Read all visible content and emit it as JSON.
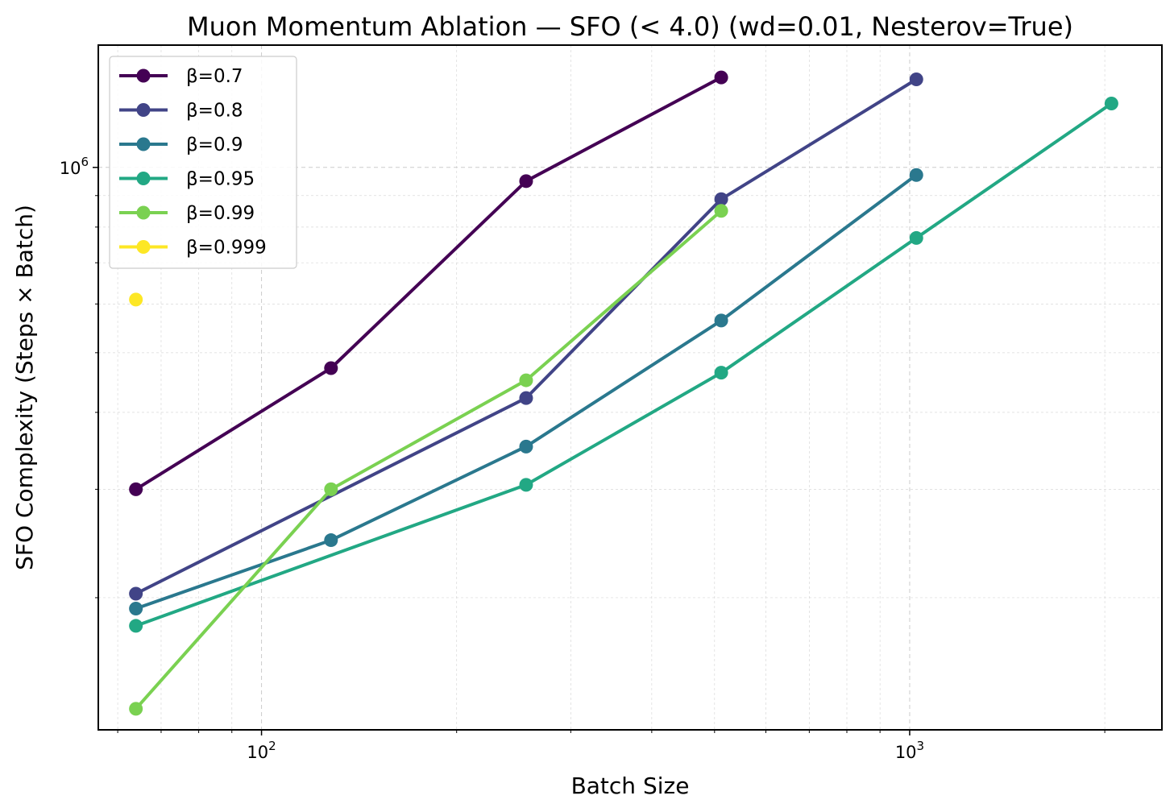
{
  "chart_data": {
    "type": "line",
    "title": "Muon Momentum Ablation — SFO (< 4.0)  (wd=0.01, Nesterov=True)",
    "xlabel": "Batch Size",
    "ylabel": "SFO Complexity (Steps × Batch)",
    "xscale": "log",
    "yscale": "log",
    "xlim": [
      56,
      2450
    ],
    "ylim": [
      122000,
      1580000
    ],
    "xticks": [
      {
        "value": 100,
        "base": "10",
        "exp": "2"
      },
      {
        "value": 1000,
        "base": "10",
        "exp": "3"
      }
    ],
    "yticks": [
      {
        "value": 1000000,
        "base": "10",
        "exp": "6"
      }
    ],
    "grid": true,
    "legend_position": "upper-left",
    "series": [
      {
        "name": "β=0.7",
        "color": "#440154",
        "x": [
          64,
          128,
          256,
          512
        ],
        "y": [
          300000,
          472000,
          950000,
          1400000
        ]
      },
      {
        "name": "β=0.8",
        "color": "#414487",
        "x": [
          64,
          256,
          512,
          1024
        ],
        "y": [
          203000,
          422000,
          888000,
          1390000
        ]
      },
      {
        "name": "β=0.9",
        "color": "#2a788e",
        "x": [
          64,
          128,
          256,
          512,
          1024
        ],
        "y": [
          192000,
          248000,
          352000,
          564000,
          972000
        ]
      },
      {
        "name": "β=0.95",
        "color": "#22a884",
        "x": [
          64,
          256,
          512,
          1024,
          2048
        ],
        "y": [
          180000,
          305000,
          464000,
          768000,
          1270000
        ]
      },
      {
        "name": "β=0.99",
        "color": "#7ad151",
        "x": [
          64,
          128,
          256,
          512
        ],
        "y": [
          132000,
          300000,
          451000,
          850000
        ]
      },
      {
        "name": "β=0.999",
        "color": "#fde725",
        "x": [
          64
        ],
        "y": [
          610000
        ]
      }
    ]
  }
}
